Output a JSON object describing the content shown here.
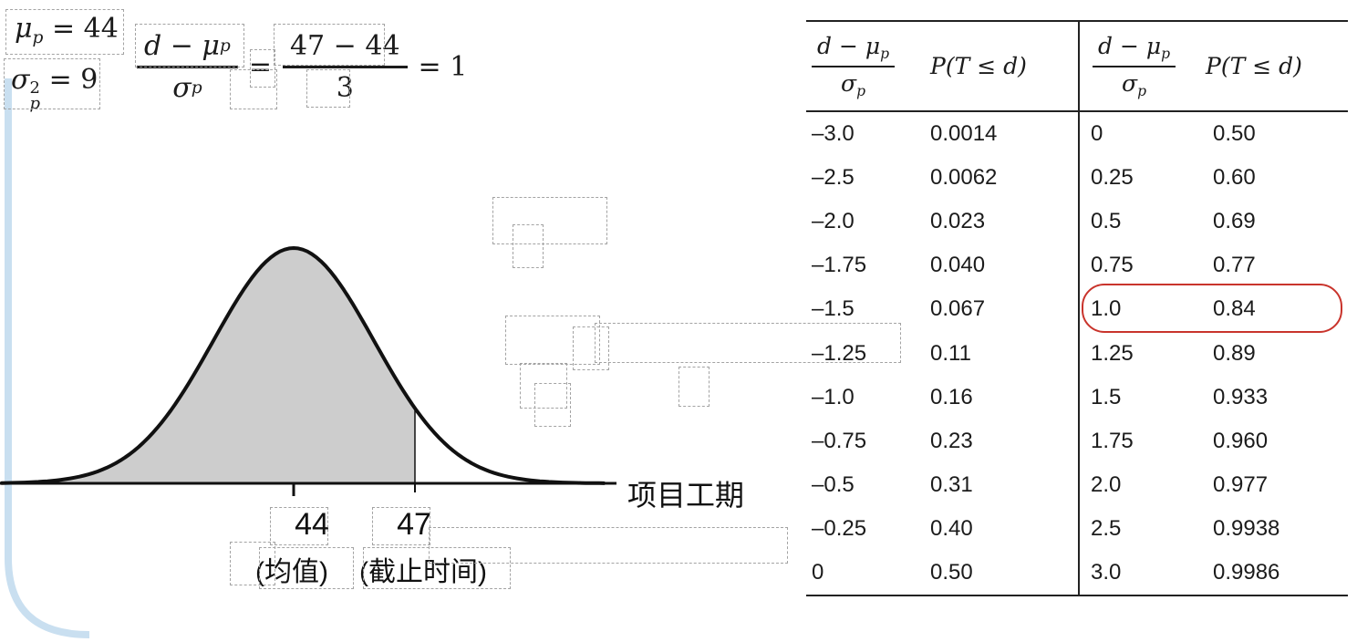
{
  "slide": {
    "formulas": {
      "mu": {
        "symbol": "μ",
        "sub": "p",
        "rest": "= 44"
      },
      "sigma": {
        "symbol": "σ",
        "sup": "2",
        "sub": "p",
        "rest": "= 9"
      },
      "z": {
        "f1_num_main": "d − μ",
        "f1_num_sub": "p",
        "f1_den_main": "σ",
        "f1_den_sub": "p",
        "eq1": "=",
        "f2_num": "47 − 44",
        "f2_den": "3",
        "eq2": "= 1"
      }
    },
    "chart": {
      "axis_label": "项目工期",
      "mean_value": "44",
      "mean_caption": "(均值)",
      "deadline_value": "47",
      "deadline_caption": "(截止时间)"
    },
    "table": {
      "header": {
        "frac_num_main": "d − μ",
        "frac_num_sub": "p",
        "frac_den_main": "σ",
        "frac_den_sub": "p",
        "prob": "P(T ≤ d)"
      },
      "rows": [
        [
          "–3.0",
          "0.0014",
          "0",
          "0.50"
        ],
        [
          "–2.5",
          "0.0062",
          "0.25",
          "0.60"
        ],
        [
          "–2.0",
          "0.023",
          "0.5",
          "0.69"
        ],
        [
          "–1.75",
          "0.040",
          "0.75",
          "0.77"
        ],
        [
          "–1.5",
          "0.067",
          "1.0",
          "0.84"
        ],
        [
          "–1.25",
          "0.11",
          "1.25",
          "0.89"
        ],
        [
          "–1.0",
          "0.16",
          "1.5",
          "0.933"
        ],
        [
          "–0.75",
          "0.23",
          "1.75",
          "0.960"
        ],
        [
          "–0.5",
          "0.31",
          "2.0",
          "0.977"
        ],
        [
          "–0.25",
          "0.40",
          "2.5",
          "0.9938"
        ],
        [
          "0",
          "0.50",
          "3.0",
          "0.9986"
        ]
      ],
      "highlighted_row": {
        "z": "1.0",
        "p": "0.84"
      }
    },
    "colors": {
      "accent_red": "#c9342c",
      "shade_gray": "#cdcdcd",
      "edge_blue": "#c9dff0"
    }
  },
  "chart_data": {
    "type": "area",
    "title": "",
    "xlabel": "项目工期",
    "distribution": {
      "mean": 44,
      "variance": 9,
      "sd": 3
    },
    "x_annotations": [
      {
        "value": "44",
        "caption": "(均值)"
      },
      {
        "value": "47",
        "caption": "(截止时间)"
      }
    ],
    "shaded_up_to": 47,
    "z_score": 1,
    "p_highlighted": 0.84
  }
}
